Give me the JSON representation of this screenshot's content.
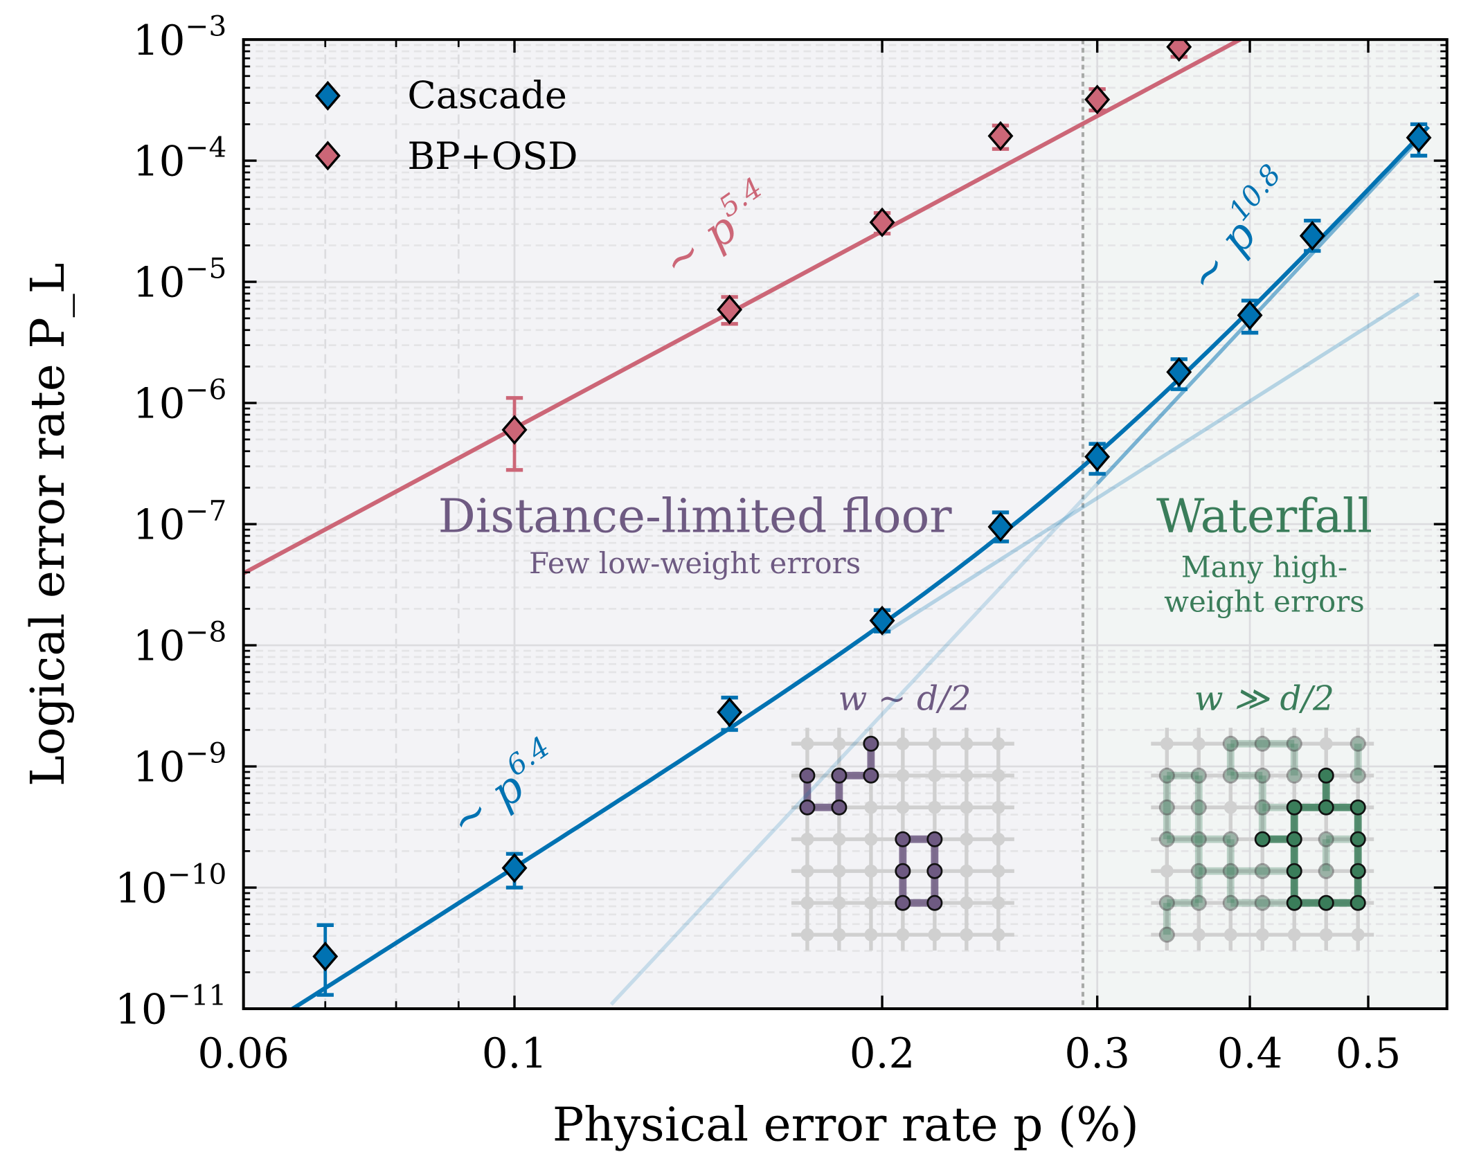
{
  "chart_data": {
    "type": "scatter",
    "xlabel": "Physical error rate p (%)",
    "ylabel": "Logical error rate P_L",
    "xscale": "log",
    "yscale": "log",
    "xlim": [
      0.06,
      0.58
    ],
    "ylim": [
      1e-11,
      0.001
    ],
    "grid": true,
    "legend": "top-left",
    "x_ticks": [
      {
        "v": 0.06,
        "label": "0.06"
      },
      {
        "v": 0.1,
        "label": "0.1"
      },
      {
        "v": 0.2,
        "label": "0.2"
      },
      {
        "v": 0.3,
        "label": "0.3"
      },
      {
        "v": 0.4,
        "label": "0.4"
      },
      {
        "v": 0.5,
        "label": "0.5"
      }
    ],
    "y_ticks": [
      {
        "exp": -3,
        "base": "10",
        "sup": "−3"
      },
      {
        "exp": -4,
        "base": "10",
        "sup": "−4"
      },
      {
        "exp": -5,
        "base": "10",
        "sup": "−5"
      },
      {
        "exp": -6,
        "base": "10",
        "sup": "−6"
      },
      {
        "exp": -7,
        "base": "10",
        "sup": "−7"
      },
      {
        "exp": -8,
        "base": "10",
        "sup": "−8"
      },
      {
        "exp": -9,
        "base": "10",
        "sup": "−9"
      },
      {
        "exp": -10,
        "base": "10",
        "sup": "−10"
      },
      {
        "exp": -11,
        "base": "10",
        "sup": "−11"
      }
    ],
    "series": [
      {
        "name": "Cascade",
        "color": "#0072b2",
        "points": [
          {
            "x": 0.07,
            "y": 2.7e-11,
            "lo": 1.3e-11,
            "hi": 4.9e-11
          },
          {
            "x": 0.1,
            "y": 1.45e-10,
            "lo": 1e-10,
            "hi": 1.9e-10
          },
          {
            "x": 0.15,
            "y": 2.8e-09,
            "lo": 2e-09,
            "hi": 3.7e-09
          },
          {
            "x": 0.2,
            "y": 1.6e-08,
            "lo": 1.3e-08,
            "hi": 1.95e-08
          },
          {
            "x": 0.25,
            "y": 9.5e-08,
            "lo": 7.2e-08,
            "hi": 1.25e-07
          },
          {
            "x": 0.3,
            "y": 3.6e-07,
            "lo": 2.6e-07,
            "hi": 4.6e-07
          },
          {
            "x": 0.35,
            "y": 1.8e-06,
            "lo": 1.3e-06,
            "hi": 2.3e-06
          },
          {
            "x": 0.4,
            "y": 5.3e-06,
            "lo": 3.8e-06,
            "hi": 7e-06
          },
          {
            "x": 0.45,
            "y": 2.4e-05,
            "lo": 1.8e-05,
            "hi": 3.2e-05
          },
          {
            "x": 0.55,
            "y": 0.000155,
            "lo": 0.00011,
            "hi": 0.0002
          }
        ]
      },
      {
        "name": "BP+OSD",
        "color": "#cc6677",
        "points": [
          {
            "x": 0.1,
            "y": 6e-07,
            "lo": 2.8e-07,
            "hi": 1.1e-06
          },
          {
            "x": 0.15,
            "y": 5.9e-06,
            "lo": 4.5e-06,
            "hi": 7.5e-06
          },
          {
            "x": 0.2,
            "y": 3.1e-05,
            "lo": 2.5e-05,
            "hi": 3.7e-05
          },
          {
            "x": 0.25,
            "y": 0.00016,
            "lo": 0.000125,
            "hi": 0.000195
          },
          {
            "x": 0.3,
            "y": 0.00032,
            "lo": 0.00026,
            "hi": 0.00039
          },
          {
            "x": 0.35,
            "y": 0.00087,
            "lo": 0.00072,
            "hi": 0.001
          }
        ]
      }
    ],
    "fits": [
      {
        "label_base": "∼ p",
        "label_exp": "5.4",
        "slope": 5.4,
        "anchor_x": 0.1,
        "anchor_y": 6.2e-07,
        "color": "#cc6677"
      },
      {
        "label_base": "∼ p",
        "label_exp": "6.4",
        "slope": 6.4,
        "anchor_x": 0.1,
        "anchor_y": 1.45e-10,
        "color": "#0072b2"
      },
      {
        "label_base": "∼ p",
        "label_exp": "10.8",
        "slope": 10.8,
        "anchor_x": 0.55,
        "anchor_y": 0.00015,
        "color": "#0072b2"
      }
    ],
    "threshold_line_x": 0.292,
    "regions": [
      {
        "title": "Distance-limited floor",
        "subtitle": [
          "Few low-weight errors"
        ],
        "inset_label": "w ∼ d/2",
        "color": "#6e5a82",
        "bg": "#f3f3f6"
      },
      {
        "title": "Waterfall",
        "subtitle": [
          "Many high-",
          "weight errors"
        ],
        "inset_label": "w ≫ d/2",
        "color": "#3a7d5a",
        "bg": "#f2f5f4"
      }
    ]
  },
  "insets": {
    "floor": {
      "nodes": [
        [
          2,
          0
        ],
        [
          0,
          1
        ],
        [
          1,
          1
        ],
        [
          2,
          1
        ],
        [
          0,
          2
        ],
        [
          1,
          2
        ],
        [
          3,
          3
        ],
        [
          4,
          3
        ],
        [
          3,
          4
        ],
        [
          4,
          4
        ],
        [
          3,
          5
        ],
        [
          4,
          5
        ]
      ],
      "edges": [
        [
          [
            2,
            0
          ],
          [
            2,
            1
          ]
        ],
        [
          [
            1,
            1
          ],
          [
            2,
            1
          ]
        ],
        [
          [
            0,
            1
          ],
          [
            0,
            2
          ]
        ],
        [
          [
            1,
            1
          ],
          [
            1,
            2
          ]
        ],
        [
          [
            0,
            2
          ],
          [
            1,
            2
          ]
        ],
        [
          [
            3,
            3
          ],
          [
            4,
            3
          ]
        ],
        [
          [
            4,
            3
          ],
          [
            4,
            4
          ]
        ],
        [
          [
            4,
            4
          ],
          [
            4,
            5
          ]
        ],
        [
          [
            3,
            3
          ],
          [
            3,
            4
          ]
        ],
        [
          [
            3,
            4
          ],
          [
            3,
            5
          ]
        ],
        [
          [
            3,
            5
          ],
          [
            4,
            5
          ]
        ]
      ]
    },
    "waterfall": {
      "dark_nodes": [
        [
          5,
          1
        ],
        [
          4,
          2
        ],
        [
          5,
          2
        ],
        [
          6,
          2
        ],
        [
          3,
          3
        ],
        [
          4,
          3
        ],
        [
          6,
          3
        ],
        [
          4,
          4
        ],
        [
          6,
          4
        ],
        [
          4,
          5
        ],
        [
          5,
          5
        ],
        [
          6,
          5
        ]
      ],
      "dark_edges": [
        [
          [
            5,
            1
          ],
          [
            5,
            2
          ]
        ],
        [
          [
            4,
            2
          ],
          [
            5,
            2
          ]
        ],
        [
          [
            5,
            2
          ],
          [
            6,
            2
          ]
        ],
        [
          [
            6,
            2
          ],
          [
            6,
            3
          ]
        ],
        [
          [
            6,
            3
          ],
          [
            6,
            4
          ]
        ],
        [
          [
            6,
            4
          ],
          [
            6,
            5
          ]
        ],
        [
          [
            3,
            3
          ],
          [
            4,
            3
          ]
        ],
        [
          [
            4,
            3
          ],
          [
            4,
            4
          ]
        ],
        [
          [
            4,
            4
          ],
          [
            4,
            5
          ]
        ],
        [
          [
            4,
            5
          ],
          [
            5,
            5
          ]
        ],
        [
          [
            5,
            5
          ],
          [
            6,
            5
          ]
        ],
        [
          [
            4,
            2
          ],
          [
            4,
            3
          ]
        ]
      ],
      "faint_nodes": [
        [
          2,
          0
        ],
        [
          3,
          0
        ],
        [
          4,
          0
        ],
        [
          6,
          0
        ],
        [
          0,
          1
        ],
        [
          1,
          1
        ],
        [
          2,
          1
        ],
        [
          3,
          1
        ],
        [
          4,
          1
        ],
        [
          6,
          1
        ],
        [
          0,
          2
        ],
        [
          1,
          2
        ],
        [
          3,
          2
        ],
        [
          0,
          3
        ],
        [
          1,
          3
        ],
        [
          2,
          3
        ],
        [
          5,
          3
        ],
        [
          1,
          4
        ],
        [
          2,
          4
        ],
        [
          3,
          4
        ],
        [
          5,
          4
        ],
        [
          0,
          5
        ],
        [
          1,
          5
        ],
        [
          2,
          5
        ],
        [
          3,
          5
        ],
        [
          0,
          6
        ]
      ],
      "faint_edges": [
        [
          [
            2,
            0
          ],
          [
            3,
            0
          ]
        ],
        [
          [
            3,
            0
          ],
          [
            4,
            0
          ]
        ],
        [
          [
            2,
            0
          ],
          [
            2,
            1
          ]
        ],
        [
          [
            4,
            0
          ],
          [
            4,
            1
          ]
        ],
        [
          [
            6,
            0
          ],
          [
            6,
            1
          ]
        ],
        [
          [
            0,
            1
          ],
          [
            1,
            1
          ]
        ],
        [
          [
            2,
            1
          ],
          [
            3,
            1
          ]
        ],
        [
          [
            1,
            1
          ],
          [
            1,
            2
          ]
        ],
        [
          [
            0,
            1
          ],
          [
            0,
            2
          ]
        ],
        [
          [
            3,
            1
          ],
          [
            3,
            2
          ]
        ],
        [
          [
            3,
            2
          ],
          [
            4,
            2
          ]
        ],
        [
          [
            0,
            2
          ],
          [
            0,
            3
          ]
        ],
        [
          [
            1,
            2
          ],
          [
            1,
            3
          ]
        ],
        [
          [
            0,
            3
          ],
          [
            1,
            3
          ]
        ],
        [
          [
            1,
            3
          ],
          [
            2,
            3
          ]
        ],
        [
          [
            5,
            3
          ],
          [
            6,
            3
          ]
        ],
        [
          [
            2,
            3
          ],
          [
            2,
            4
          ]
        ],
        [
          [
            1,
            3
          ],
          [
            1,
            4
          ]
        ],
        [
          [
            1,
            4
          ],
          [
            2,
            4
          ]
        ],
        [
          [
            2,
            4
          ],
          [
            3,
            4
          ]
        ],
        [
          [
            3,
            4
          ],
          [
            4,
            4
          ]
        ],
        [
          [
            5,
            3
          ],
          [
            5,
            4
          ]
        ],
        [
          [
            1,
            4
          ],
          [
            1,
            5
          ]
        ],
        [
          [
            2,
            4
          ],
          [
            2,
            5
          ]
        ],
        [
          [
            0,
            5
          ],
          [
            1,
            5
          ]
        ],
        [
          [
            2,
            5
          ],
          [
            3,
            5
          ]
        ],
        [
          [
            3,
            5
          ],
          [
            4,
            5
          ]
        ],
        [
          [
            0,
            5
          ],
          [
            0,
            6
          ]
        ],
        [
          [
            3,
            3
          ],
          [
            3,
            2
          ]
        ]
      ]
    }
  }
}
